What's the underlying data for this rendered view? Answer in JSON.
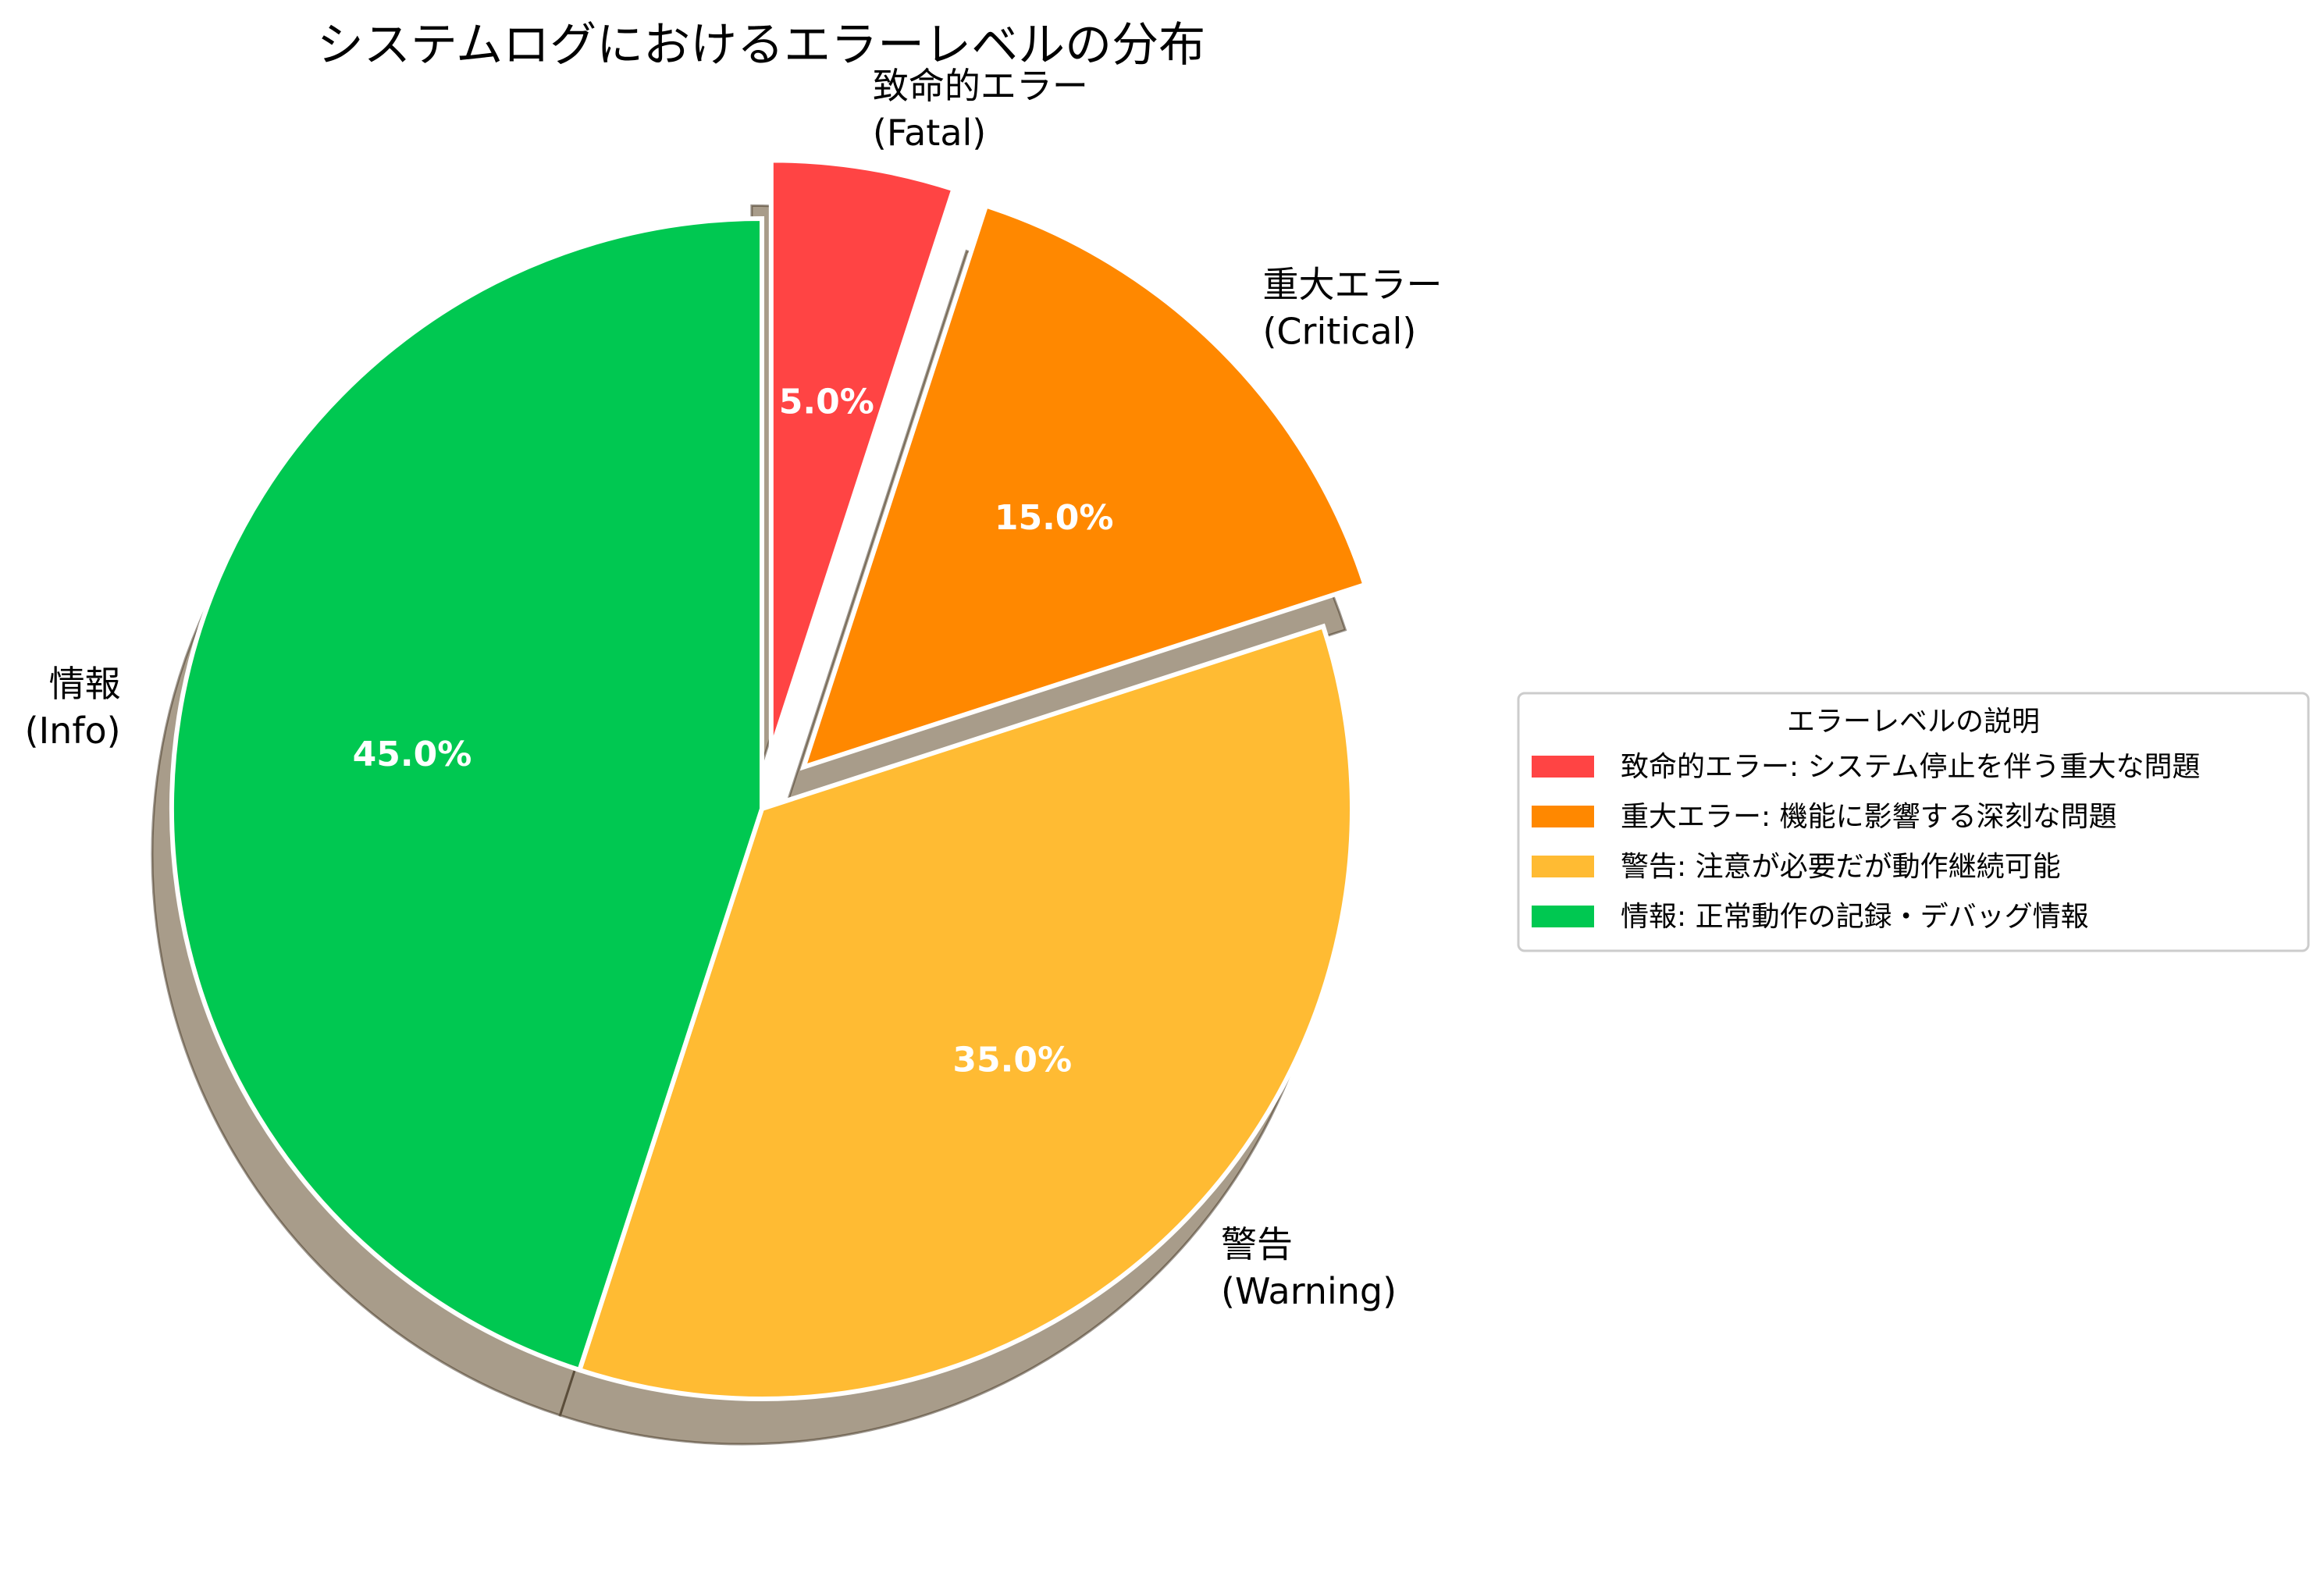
{
  "chart_data": {
    "type": "pie",
    "title": "システムログにおけるエラーレベルの分布",
    "slices": [
      {
        "label_line1": "致命的エラー",
        "label_line2": "(Fatal)",
        "value": 5.0,
        "pct_label": "5.0%",
        "color": "#ff4444",
        "exploded": true,
        "legend": "致命的エラー: システム停止を伴う重大な問題"
      },
      {
        "label_line1": "重大エラー",
        "label_line2": "(Critical)",
        "value": 15.0,
        "pct_label": "15.0%",
        "color": "#ff8800",
        "exploded": true,
        "legend": "重大エラー: 機能に影響する深刻な問題"
      },
      {
        "label_line1": "警告",
        "label_line2": "(Warning)",
        "value": 35.0,
        "pct_label": "35.0%",
        "color": "#ffbb33",
        "exploded": false,
        "legend": "警告: 注意が必要だが動作継続可能"
      },
      {
        "label_line1": "情報",
        "label_line2": "(Info)",
        "value": 45.0,
        "pct_label": "45.0%",
        "color": "#00c851",
        "exploded": false,
        "legend": "情報: 正常動作の記録・デバッグ情報"
      }
    ],
    "start_angle_deg": 90,
    "direction": "clockwise",
    "shadow": true,
    "legend_title": "エラーレベルの説明",
    "legend_placement": "right"
  }
}
